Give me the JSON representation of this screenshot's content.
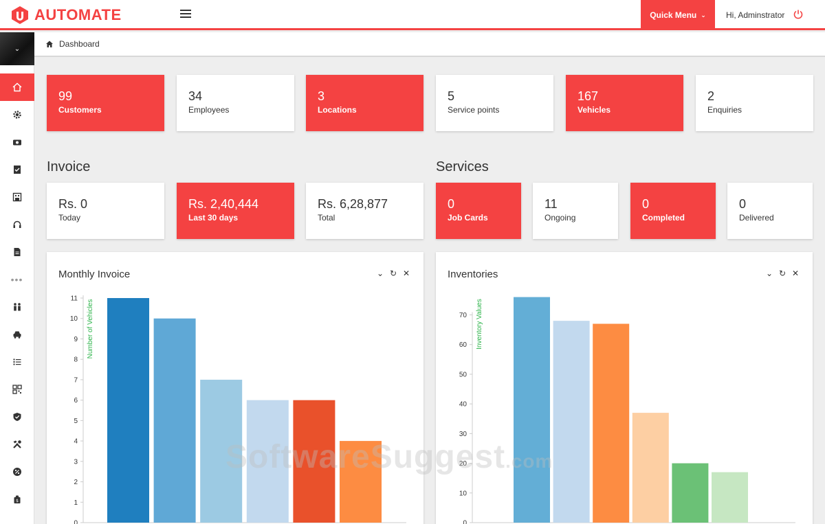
{
  "brand": {
    "name": "AUTOMATE",
    "color": "#f44242"
  },
  "topbar": {
    "quick_menu": "Quick Menu",
    "greeting": "Hi, Adminstrator"
  },
  "breadcrumb": {
    "label": "Dashboard"
  },
  "sidebar": {
    "items": [
      "home-icon",
      "gear-icon",
      "money-icon",
      "checklist-icon",
      "store-icon",
      "headset-icon",
      "document-icon",
      "people-icon",
      "car-icon",
      "list-icon",
      "qr-icon",
      "shield-icon",
      "tools-icon",
      "percent-icon",
      "bag-icon"
    ],
    "active": "home-icon"
  },
  "stats": [
    {
      "value": "99",
      "label": "Customers",
      "red": true
    },
    {
      "value": "34",
      "label": "Employees",
      "red": false
    },
    {
      "value": "3",
      "label": "Locations",
      "red": true
    },
    {
      "value": "5",
      "label": "Service points",
      "red": false
    },
    {
      "value": "167",
      "label": "Vehicles",
      "red": true
    },
    {
      "value": "2",
      "label": "Enquiries",
      "red": false
    }
  ],
  "invoice": {
    "title": "Invoice",
    "cards": [
      {
        "value": "Rs. 0",
        "label": "Today",
        "red": false
      },
      {
        "value": "Rs. 2,40,444",
        "label": "Last 30 days",
        "red": true
      },
      {
        "value": "Rs. 6,28,877",
        "label": "Total",
        "red": false
      }
    ]
  },
  "services": {
    "title": "Services",
    "cards": [
      {
        "value": "0",
        "label": "Job Cards",
        "red": true
      },
      {
        "value": "11",
        "label": "Ongoing",
        "red": false
      },
      {
        "value": "0",
        "label": "Completed",
        "red": true
      },
      {
        "value": "0",
        "label": "Delivered",
        "red": false
      }
    ]
  },
  "panels": {
    "monthly": {
      "title": "Monthly Invoice"
    },
    "inventories": {
      "title": "Inventories"
    },
    "tools": {
      "collapse": "⌄",
      "refresh": "↻",
      "close": "✕"
    }
  },
  "chart_data": [
    {
      "type": "bar",
      "title": "Monthly Invoice",
      "ylabel": "Number of Vehicles",
      "ylim": [
        0,
        11
      ],
      "yticks": [
        0,
        1,
        2,
        3,
        4,
        5,
        6,
        7,
        8,
        9,
        10,
        11
      ],
      "values": [
        11,
        10,
        7,
        6,
        6,
        4
      ],
      "colors": [
        "#1f7fbf",
        "#5fa8d6",
        "#9ccae3",
        "#c2d9ee",
        "#e9512b",
        "#fd8c42"
      ]
    },
    {
      "type": "bar",
      "title": "Inventories",
      "ylabel": "Inventory Values",
      "yticks": [
        0,
        10,
        20,
        30,
        40,
        50,
        60,
        70
      ],
      "values": [
        76,
        68,
        67,
        37,
        20,
        17
      ],
      "colors": [
        "#63aed6",
        "#c2d9ee",
        "#fd8c42",
        "#fdcfa3",
        "#6bc176",
        "#c6e7c2"
      ]
    }
  ],
  "watermark": {
    "main": "SoftwareSuggest",
    "suffix": ".com"
  }
}
